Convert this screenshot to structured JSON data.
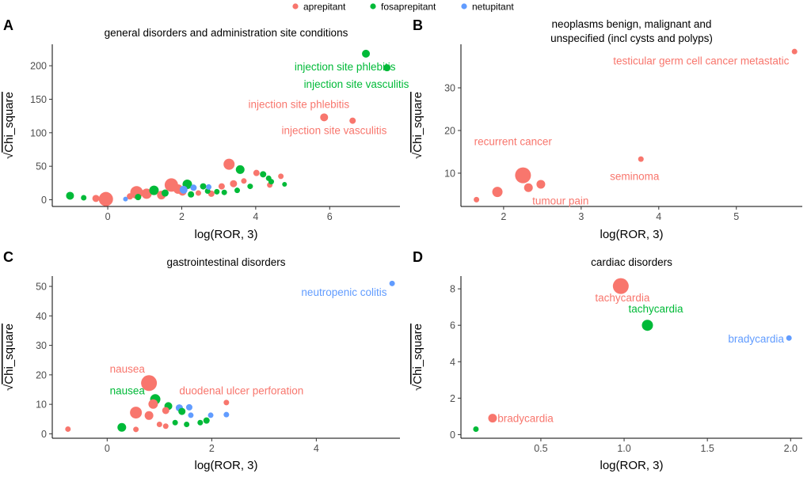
{
  "legend": {
    "items": [
      {
        "name": "aprepitant",
        "color": "#F8766D"
      },
      {
        "name": "fosaprepitant",
        "color": "#00BA38"
      },
      {
        "name": "netupitant",
        "color": "#619CFF"
      }
    ]
  },
  "chart_data": [
    {
      "panel": "A",
      "type": "scatter",
      "title": [
        "general disorders and administration site conditions"
      ],
      "xlabel": "log(ROR, 3)",
      "ylabel": "Chi_square",
      "ylabel_prefix": "√",
      "xlim": [
        -1.5,
        7.9
      ],
      "ylim": [
        -10,
        232
      ],
      "xticks": [
        0,
        2,
        4,
        6
      ],
      "yticks": [
        0,
        50,
        100,
        150,
        200
      ],
      "points": [
        {
          "drug": "fosaprepitant",
          "x": 6.98,
          "y": 218,
          "s": 10
        },
        {
          "drug": "fosaprepitant",
          "x": 7.55,
          "y": 197,
          "s": 9
        },
        {
          "drug": "aprepitant",
          "x": 5.85,
          "y": 123,
          "s": 10
        },
        {
          "drug": "aprepitant",
          "x": 6.62,
          "y": 118,
          "s": 8
        },
        {
          "drug": "aprepitant",
          "x": 3.28,
          "y": 53,
          "s": 14
        },
        {
          "drug": "fosaprepitant",
          "x": 3.58,
          "y": 45,
          "s": 11
        },
        {
          "drug": "fosaprepitant",
          "x": -1.02,
          "y": 6,
          "s": 10
        },
        {
          "drug": "fosaprepitant",
          "x": -0.65,
          "y": 3,
          "s": 7
        },
        {
          "drug": "aprepitant",
          "x": -0.32,
          "y": 2,
          "s": 9
        },
        {
          "drug": "aprepitant",
          "x": -0.05,
          "y": 1,
          "s": 18
        },
        {
          "drug": "netupitant",
          "x": 0.48,
          "y": 1,
          "s": 6
        },
        {
          "drug": "aprepitant",
          "x": 0.6,
          "y": 5,
          "s": 8
        },
        {
          "drug": "aprepitant",
          "x": 0.78,
          "y": 11,
          "s": 16
        },
        {
          "drug": "fosaprepitant",
          "x": 0.82,
          "y": 4,
          "s": 8
        },
        {
          "drug": "aprepitant",
          "x": 1.05,
          "y": 9,
          "s": 13
        },
        {
          "drug": "fosaprepitant",
          "x": 1.25,
          "y": 14,
          "s": 12
        },
        {
          "drug": "aprepitant",
          "x": 1.45,
          "y": 7,
          "s": 11
        },
        {
          "drug": "fosaprepitant",
          "x": 1.55,
          "y": 10,
          "s": 9
        },
        {
          "drug": "aprepitant",
          "x": 1.72,
          "y": 22,
          "s": 17
        },
        {
          "drug": "aprepitant",
          "x": 1.9,
          "y": 16,
          "s": 12
        },
        {
          "drug": "aprepitant",
          "x": 2.02,
          "y": 12,
          "s": 10
        },
        {
          "drug": "fosaprepitant",
          "x": 2.15,
          "y": 23,
          "s": 12
        },
        {
          "drug": "netupitant",
          "x": 2.05,
          "y": 15,
          "s": 10
        },
        {
          "drug": "netupitant",
          "x": 2.32,
          "y": 18,
          "s": 8
        },
        {
          "drug": "fosaprepitant",
          "x": 2.25,
          "y": 8,
          "s": 8
        },
        {
          "drug": "aprepitant",
          "x": 2.45,
          "y": 10,
          "s": 7
        },
        {
          "drug": "fosaprepitant",
          "x": 2.58,
          "y": 20,
          "s": 8
        },
        {
          "drug": "fosaprepitant",
          "x": 2.7,
          "y": 13,
          "s": 7
        },
        {
          "drug": "aprepitant",
          "x": 2.8,
          "y": 9,
          "s": 8
        },
        {
          "drug": "netupitant",
          "x": 2.73,
          "y": 19,
          "s": 7
        },
        {
          "drug": "fosaprepitant",
          "x": 2.95,
          "y": 12,
          "s": 7
        },
        {
          "drug": "aprepitant",
          "x": 3.08,
          "y": 20,
          "s": 8
        },
        {
          "drug": "fosaprepitant",
          "x": 3.15,
          "y": 11,
          "s": 7
        },
        {
          "drug": "aprepitant",
          "x": 3.4,
          "y": 24,
          "s": 9
        },
        {
          "drug": "fosaprepitant",
          "x": 3.5,
          "y": 14,
          "s": 7
        },
        {
          "drug": "aprepitant",
          "x": 3.68,
          "y": 28,
          "s": 7
        },
        {
          "drug": "fosaprepitant",
          "x": 3.85,
          "y": 20,
          "s": 7
        },
        {
          "drug": "aprepitant",
          "x": 4.02,
          "y": 40,
          "s": 8
        },
        {
          "drug": "fosaprepitant",
          "x": 4.2,
          "y": 38,
          "s": 8
        },
        {
          "drug": "fosaprepitant",
          "x": 4.35,
          "y": 32,
          "s": 7
        },
        {
          "drug": "aprepitant",
          "x": 4.38,
          "y": 22,
          "s": 7
        },
        {
          "drug": "fosaprepitant",
          "x": 4.42,
          "y": 27,
          "s": 7
        },
        {
          "drug": "aprepitant",
          "x": 4.68,
          "y": 35,
          "s": 7
        },
        {
          "drug": "fosaprepitant",
          "x": 4.78,
          "y": 23,
          "s": 6
        }
      ],
      "annotations": [
        {
          "text": "injection site phlebitis",
          "drug": "fosaprepitant",
          "x": 5.05,
          "y": 193,
          "anchor": "start"
        },
        {
          "text": "injection site vasculitis",
          "drug": "fosaprepitant",
          "x": 5.3,
          "y": 167,
          "anchor": "start"
        },
        {
          "text": "injection site phlebitis",
          "drug": "aprepitant",
          "x": 3.8,
          "y": 137,
          "anchor": "start"
        },
        {
          "text": "injection site vasculitis",
          "drug": "aprepitant",
          "x": 4.7,
          "y": 98,
          "anchor": "start"
        }
      ]
    },
    {
      "panel": "B",
      "type": "scatter",
      "title": [
        "neoplasms benign, malignant and",
        "unspecified (incl cysts and polyps)"
      ],
      "xlabel": "log(ROR, 3)",
      "ylabel": "Chi_square",
      "ylabel_prefix": "√",
      "xlim": [
        1.45,
        5.85
      ],
      "ylim": [
        2.2,
        40.2
      ],
      "xticks": [
        2,
        3,
        4,
        5
      ],
      "yticks": [
        10,
        20,
        30
      ],
      "points": [
        {
          "drug": "aprepitant",
          "x": 5.75,
          "y": 38.5,
          "s": 7
        },
        {
          "drug": "aprepitant",
          "x": 3.77,
          "y": 13.3,
          "s": 7
        },
        {
          "drug": "aprepitant",
          "x": 2.25,
          "y": 9.5,
          "s": 20
        },
        {
          "drug": "aprepitant",
          "x": 2.48,
          "y": 7.4,
          "s": 11
        },
        {
          "drug": "aprepitant",
          "x": 2.32,
          "y": 6.6,
          "s": 11
        },
        {
          "drug": "aprepitant",
          "x": 1.92,
          "y": 5.6,
          "s": 13
        },
        {
          "drug": "aprepitant",
          "x": 1.65,
          "y": 3.8,
          "s": 7
        }
      ],
      "annotations": [
        {
          "text": "testicular germ cell cancer metastatic",
          "drug": "aprepitant",
          "x": 5.68,
          "y": 35.5,
          "anchor": "end"
        },
        {
          "text": "recurrent cancer",
          "drug": "aprepitant",
          "x": 1.62,
          "y": 16.6,
          "anchor": "start"
        },
        {
          "text": "seminoma",
          "drug": "aprepitant",
          "x": 3.37,
          "y": 8.4,
          "anchor": "start"
        },
        {
          "text": "tumour pain",
          "drug": "aprepitant",
          "x": 2.37,
          "y": 2.7,
          "anchor": "start"
        }
      ]
    },
    {
      "panel": "C",
      "type": "scatter",
      "title": [
        "gastrointestinal disorders"
      ],
      "xlabel": "log(ROR, 3)",
      "ylabel": "Chi_square",
      "ylabel_prefix": "√",
      "xlim": [
        -1.05,
        5.6
      ],
      "ylim": [
        -1.5,
        53.5
      ],
      "xticks": [
        0,
        2,
        4
      ],
      "yticks": [
        0,
        10,
        20,
        30,
        40,
        50
      ],
      "points": [
        {
          "drug": "netupitant",
          "x": 5.45,
          "y": 51,
          "s": 7
        },
        {
          "drug": "aprepitant",
          "x": 0.8,
          "y": 17.2,
          "s": 20
        },
        {
          "drug": "fosaprepitant",
          "x": 0.92,
          "y": 11.7,
          "s": 13
        },
        {
          "drug": "aprepitant",
          "x": 0.88,
          "y": 10.1,
          "s": 12
        },
        {
          "drug": "fosaprepitant",
          "x": 1.17,
          "y": 9.4,
          "s": 10
        },
        {
          "drug": "aprepitant",
          "x": 0.55,
          "y": 7.2,
          "s": 15
        },
        {
          "drug": "aprepitant",
          "x": 0.8,
          "y": 6.2,
          "s": 11
        },
        {
          "drug": "aprepitant",
          "x": 1.12,
          "y": 7.9,
          "s": 9
        },
        {
          "drug": "netupitant",
          "x": 1.38,
          "y": 8.8,
          "s": 9
        },
        {
          "drug": "netupitant",
          "x": 1.57,
          "y": 9.0,
          "s": 8
        },
        {
          "drug": "fosaprepitant",
          "x": 1.43,
          "y": 7.6,
          "s": 9
        },
        {
          "drug": "netupitant",
          "x": 1.6,
          "y": 6.3,
          "s": 7
        },
        {
          "drug": "netupitant",
          "x": 1.98,
          "y": 6.3,
          "s": 7
        },
        {
          "drug": "netupitant",
          "x": 2.28,
          "y": 6.5,
          "s": 7
        },
        {
          "drug": "aprepitant",
          "x": 2.28,
          "y": 10.6,
          "s": 7
        },
        {
          "drug": "fosaprepitant",
          "x": 0.28,
          "y": 2.2,
          "s": 11
        },
        {
          "drug": "aprepitant",
          "x": 0.55,
          "y": 1.5,
          "s": 7
        },
        {
          "drug": "aprepitant",
          "x": 1.0,
          "y": 3.2,
          "s": 7
        },
        {
          "drug": "aprepitant",
          "x": 1.12,
          "y": 2.6,
          "s": 7
        },
        {
          "drug": "fosaprepitant",
          "x": 1.3,
          "y": 3.8,
          "s": 7
        },
        {
          "drug": "fosaprepitant",
          "x": 1.52,
          "y": 3.2,
          "s": 7
        },
        {
          "drug": "fosaprepitant",
          "x": 1.78,
          "y": 3.8,
          "s": 7
        },
        {
          "drug": "fosaprepitant",
          "x": 1.9,
          "y": 4.5,
          "s": 8
        },
        {
          "drug": "aprepitant",
          "x": -0.75,
          "y": 1.6,
          "s": 7
        }
      ],
      "annotations": [
        {
          "text": "neutropenic colitis",
          "drug": "netupitant",
          "x": 5.35,
          "y": 46.8,
          "anchor": "end"
        },
        {
          "text": "nausea",
          "drug": "aprepitant",
          "x": 0.05,
          "y": 20.8,
          "anchor": "start"
        },
        {
          "text": "nausea",
          "drug": "fosaprepitant",
          "x": 0.05,
          "y": 13.4,
          "anchor": "start"
        },
        {
          "text": "duodenal ulcer perforation",
          "drug": "aprepitant",
          "x": 1.38,
          "y": 13.4,
          "anchor": "start"
        }
      ]
    },
    {
      "panel": "D",
      "type": "scatter",
      "title": [
        "cardiac disorders"
      ],
      "xlabel": "log(ROR, 3)",
      "ylabel": "Chi_square",
      "ylabel_prefix": "√",
      "xlim": [
        0.02,
        2.07
      ],
      "ylim": [
        -0.2,
        8.7
      ],
      "xticks": [
        0.5,
        1.0,
        1.5,
        2.0
      ],
      "xtick_labels": [
        "0.5",
        "1.0",
        "1.5",
        "2.0"
      ],
      "yticks": [
        0,
        2,
        4,
        6,
        8
      ],
      "points": [
        {
          "drug": "aprepitant",
          "x": 0.98,
          "y": 8.15,
          "s": 20
        },
        {
          "drug": "fosaprepitant",
          "x": 1.14,
          "y": 6.0,
          "s": 14
        },
        {
          "drug": "netupitant",
          "x": 1.99,
          "y": 5.3,
          "s": 7
        },
        {
          "drug": "aprepitant",
          "x": 0.21,
          "y": 0.9,
          "s": 11
        },
        {
          "drug": "fosaprepitant",
          "x": 0.11,
          "y": 0.3,
          "s": 7
        }
      ],
      "annotations": [
        {
          "text": "tachycardia",
          "drug": "aprepitant",
          "x": 0.99,
          "y": 7.3,
          "anchor": "middle"
        },
        {
          "text": "tachycardia",
          "drug": "fosaprepitant",
          "x": 1.19,
          "y": 6.7,
          "anchor": "middle"
        },
        {
          "text": "bradycardia",
          "drug": "netupitant",
          "x": 1.96,
          "y": 5.05,
          "anchor": "end"
        },
        {
          "text": "bradycardia",
          "drug": "aprepitant",
          "x": 0.24,
          "y": 0.7,
          "anchor": "start"
        }
      ]
    }
  ]
}
